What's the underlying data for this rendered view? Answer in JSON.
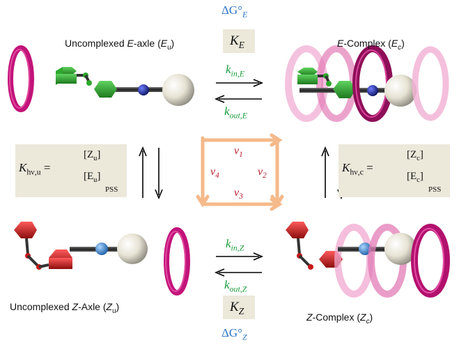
{
  "labels": {
    "uncomplexed_e_prefix": "Uncomplexed ",
    "uncomplexed_e_italic": "E",
    "uncomplexed_e_mid": "-axle (",
    "uncomplexed_e_sym": "E",
    "uncomplexed_e_sub": "u",
    "uncomplexed_e_end": ")",
    "e_complex_italic": "E",
    "e_complex_mid": "-Complex (",
    "e_complex_sym": "E",
    "e_complex_sub": "c",
    "e_complex_end": ")",
    "uncomplexed_z_prefix": "Uncomplexed ",
    "uncomplexed_z_italic": "Z",
    "uncomplexed_z_mid": "-Axle (",
    "uncomplexed_z_sym": "Z",
    "uncomplexed_z_sub": "u",
    "uncomplexed_z_end": ")",
    "z_complex_italic": "Z",
    "z_complex_mid": "-Complex (",
    "z_complex_sym": "Z",
    "z_complex_sub": "c",
    "z_complex_end": ")"
  },
  "energies": {
    "dG_E": "ΔG°",
    "dG_E_sub": "E",
    "dG_Z": "ΔG°",
    "dG_Z_sub": "Z"
  },
  "constants": {
    "K_E": "K",
    "K_E_sub": "E",
    "K_Z": "K",
    "K_Z_sub": "Z"
  },
  "rates": {
    "kin_E": "k",
    "kin_E_sub": "in,E",
    "kout_E": "k",
    "kout_E_sub": "out,E",
    "kin_Z": "k",
    "kin_Z_sub": "in,Z",
    "kout_Z": "k",
    "kout_Z_sub": "out,Z"
  },
  "photo": {
    "left_K": "K",
    "left_K_sub": "hν,u",
    "left_num": "[Z",
    "left_num_sub": "u",
    "left_num_end": "]",
    "left_den": "[E",
    "left_den_sub": "u",
    "left_den_end": "]",
    "right_K": "K",
    "right_K_sub": "hν,c",
    "right_num": "[Z",
    "right_num_sub": "c",
    "right_num_end": "]",
    "right_den": "[E",
    "right_den_sub": "c",
    "right_den_end": "]",
    "pss": "PSS",
    "equals": "="
  },
  "cycle": {
    "v1": "v",
    "v1_sub": "1",
    "v2": "v",
    "v2_sub": "2",
    "v3": "v",
    "v3_sub": "3",
    "v4": "v",
    "v4_sub": "4"
  },
  "colors": {
    "ring": "#c2137a",
    "green_axle": "#2da82d",
    "red_axle": "#c51a1a",
    "navy_bead": "#1a2a8c",
    "blue_bead": "#3a8fd6",
    "stopper": "#e9e6da",
    "cycle_arrow": "#f5b98a",
    "box": "#ece8da"
  }
}
